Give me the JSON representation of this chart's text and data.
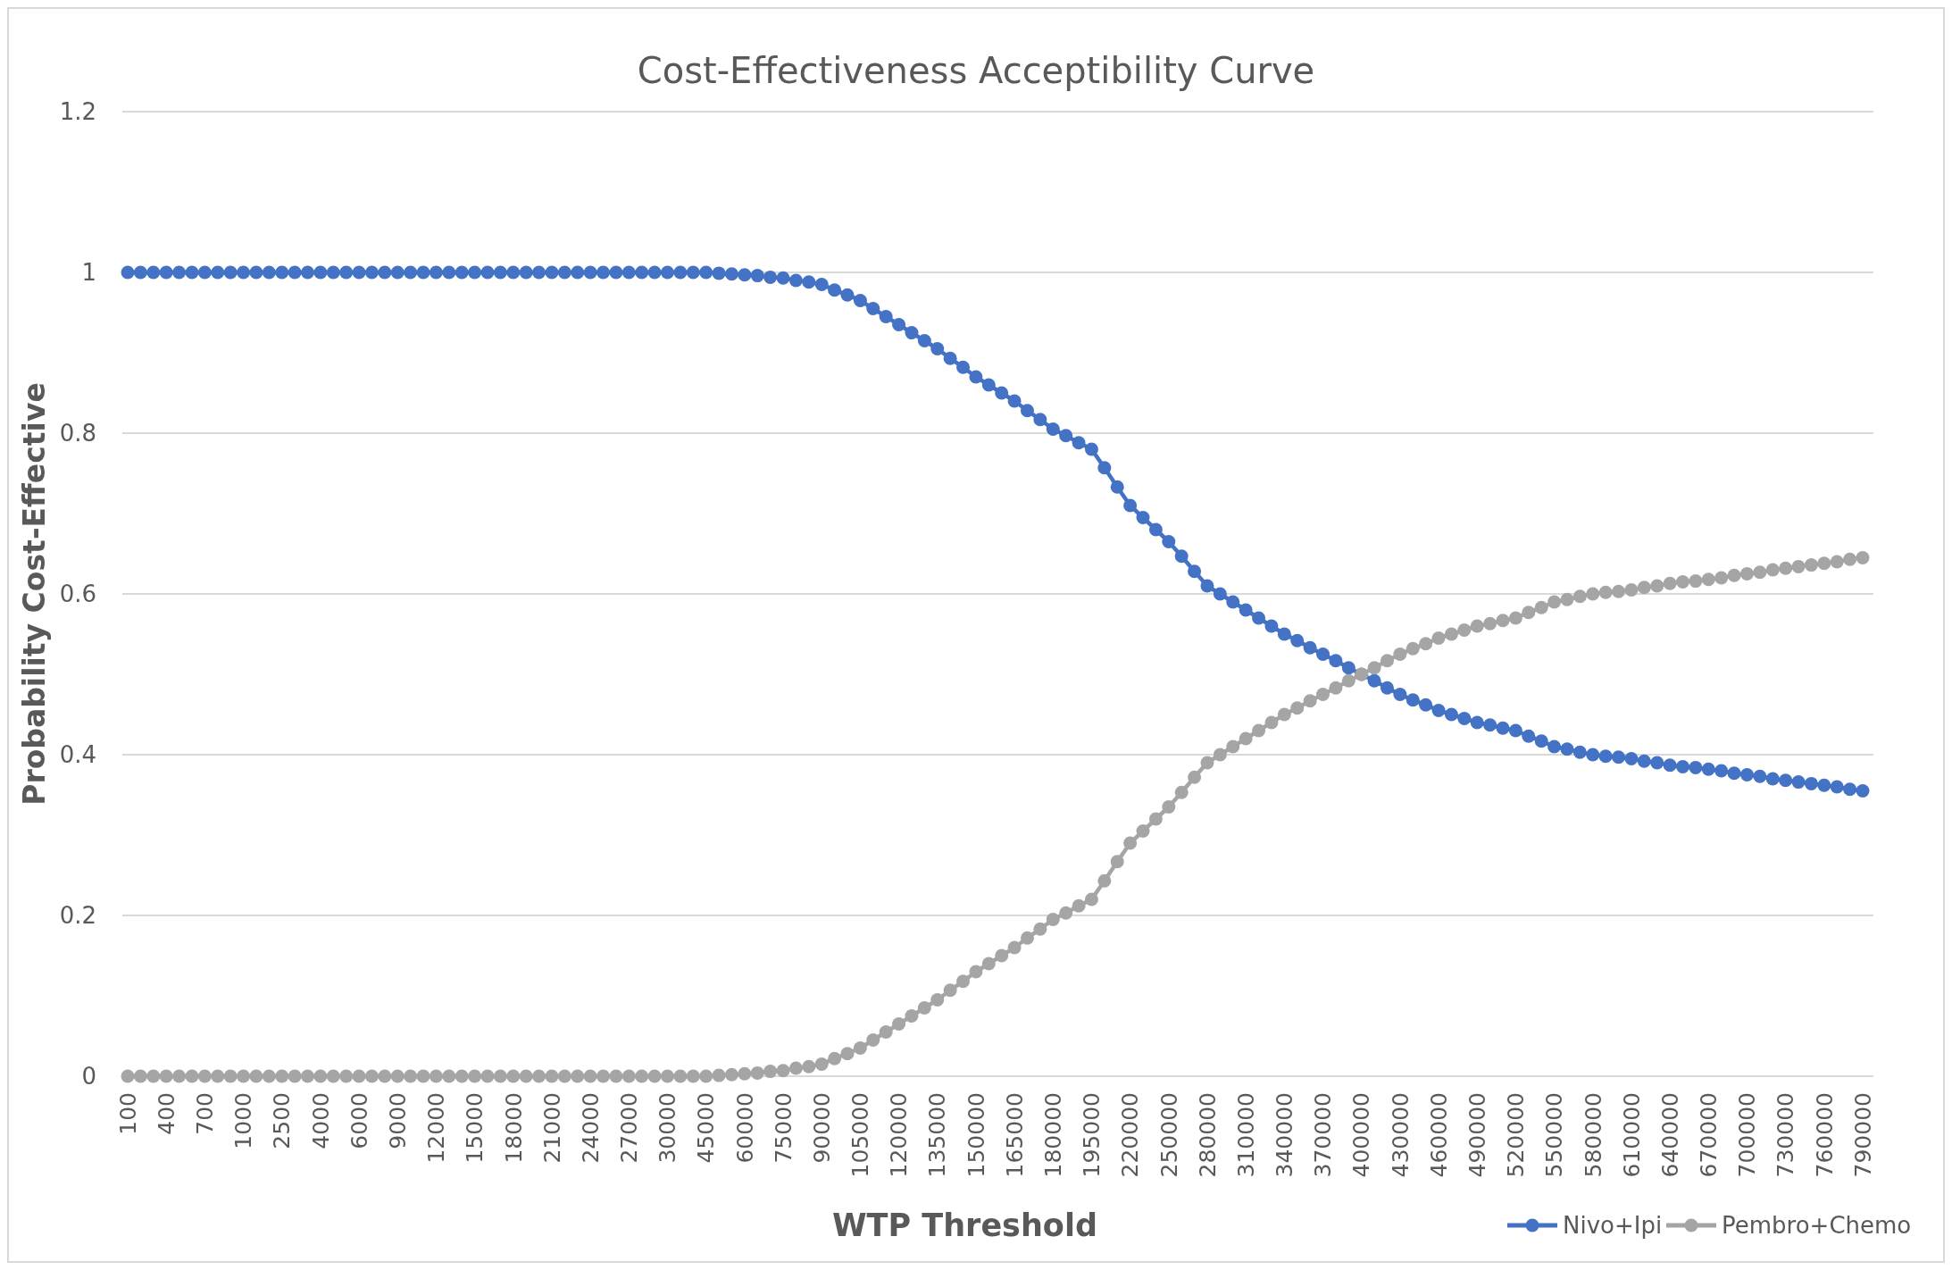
{
  "chart_data": {
    "type": "line",
    "title": "Cost-Effectiveness  Acceptibility Curve",
    "xlabel": "WTP Threshold",
    "ylabel": "Probability Cost-Effective",
    "categories": [
      "100",
      null,
      null,
      "400",
      null,
      null,
      "700",
      null,
      null,
      "1000",
      null,
      null,
      "2500",
      null,
      null,
      "4000",
      null,
      null,
      "6000",
      null,
      null,
      "9000",
      null,
      null,
      "12000",
      null,
      null,
      "15000",
      null,
      null,
      "18000",
      null,
      null,
      "21000",
      null,
      null,
      "24000",
      null,
      null,
      "27000",
      null,
      null,
      "30000",
      null,
      null,
      "45000",
      null,
      null,
      "60000",
      null,
      null,
      "75000",
      null,
      null,
      "90000",
      null,
      null,
      "105000",
      null,
      null,
      "120000",
      null,
      null,
      "135000",
      null,
      null,
      "150000",
      null,
      null,
      "165000",
      null,
      null,
      "180000",
      null,
      null,
      "195000",
      null,
      null,
      "220000",
      null,
      null,
      "250000",
      null,
      null,
      "280000",
      null,
      null,
      "310000",
      null,
      null,
      "340000",
      null,
      null,
      "370000",
      null,
      null,
      "400000",
      null,
      null,
      "430000",
      null,
      null,
      "460000",
      null,
      null,
      "490000",
      null,
      null,
      "520000",
      null,
      null,
      "550000",
      null,
      null,
      "580000",
      null,
      null,
      "610000",
      null,
      null,
      "640000",
      null,
      null,
      "670000",
      null,
      null,
      "700000",
      null,
      null,
      "730000",
      null,
      null,
      "760000",
      null,
      null,
      "790000"
    ],
    "series": [
      {
        "name": "Nivo+Ipi",
        "color": "#4472c4",
        "values": [
          1,
          1,
          1,
          1,
          1,
          1,
          1,
          1,
          1,
          1,
          1,
          1,
          1,
          1,
          1,
          1,
          1,
          1,
          1,
          1,
          1,
          1,
          1,
          1,
          1,
          1,
          1,
          1,
          1,
          1,
          1,
          1,
          1,
          1,
          1,
          1,
          1,
          1,
          1,
          1,
          1,
          1,
          1,
          1,
          1,
          1,
          0.999,
          0.998,
          0.997,
          0.996,
          0.994,
          0.993,
          0.99,
          0.988,
          0.985,
          0.978,
          0.972,
          0.965,
          0.955,
          0.945,
          0.935,
          0.925,
          0.915,
          0.905,
          0.893,
          0.882,
          0.87,
          0.86,
          0.85,
          0.84,
          0.828,
          0.817,
          0.805,
          0.797,
          0.788,
          0.78,
          0.757,
          0.733,
          0.71,
          0.695,
          0.68,
          0.665,
          0.647,
          0.628,
          0.61,
          0.6,
          0.59,
          0.58,
          0.57,
          0.56,
          0.55,
          0.542,
          0.533,
          0.525,
          0.517,
          0.508,
          0.5,
          0.492,
          0.483,
          0.475,
          0.468,
          0.462,
          0.455,
          0.45,
          0.445,
          0.44,
          0.437,
          0.433,
          0.43,
          0.423,
          0.417,
          0.41,
          0.407,
          0.403,
          0.4,
          0.398,
          0.397,
          0.395,
          0.392,
          0.39,
          0.387,
          0.385,
          0.384,
          0.382,
          0.38,
          0.377,
          0.375,
          0.373,
          0.37,
          0.368,
          0.366,
          0.364,
          0.362,
          0.36,
          0.357,
          0.355
        ]
      },
      {
        "name": "Pembro+Chemo",
        "color": "#a5a5a5",
        "values": [
          0,
          0,
          0,
          0,
          0,
          0,
          0,
          0,
          0,
          0,
          0,
          0,
          0,
          0,
          0,
          0,
          0,
          0,
          0,
          0,
          0,
          0,
          0,
          0,
          0,
          0,
          0,
          0,
          0,
          0,
          0,
          0,
          0,
          0,
          0,
          0,
          0,
          0,
          0,
          0,
          0,
          0,
          0,
          0,
          0,
          0,
          0.001,
          0.002,
          0.003,
          0.004,
          0.006,
          0.007,
          0.01,
          0.012,
          0.015,
          0.022,
          0.028,
          0.035,
          0.045,
          0.055,
          0.065,
          0.075,
          0.085,
          0.095,
          0.107,
          0.118,
          0.13,
          0.14,
          0.15,
          0.16,
          0.172,
          0.183,
          0.195,
          0.203,
          0.212,
          0.22,
          0.243,
          0.267,
          0.29,
          0.305,
          0.32,
          0.335,
          0.353,
          0.372,
          0.39,
          0.4,
          0.41,
          0.42,
          0.43,
          0.44,
          0.45,
          0.458,
          0.467,
          0.475,
          0.483,
          0.492,
          0.5,
          0.508,
          0.517,
          0.525,
          0.532,
          0.538,
          0.545,
          0.55,
          0.555,
          0.56,
          0.563,
          0.567,
          0.57,
          0.577,
          0.583,
          0.59,
          0.593,
          0.597,
          0.6,
          0.602,
          0.603,
          0.605,
          0.608,
          0.61,
          0.613,
          0.615,
          0.616,
          0.618,
          0.62,
          0.623,
          0.625,
          0.627,
          0.63,
          0.632,
          0.634,
          0.636,
          0.638,
          0.64,
          0.643,
          0.645
        ]
      }
    ],
    "ylim": [
      0,
      1.2
    ],
    "yticks": [
      0,
      0.2,
      0.4,
      0.6,
      0.8,
      1,
      1.2
    ],
    "grid": "y",
    "legend": "bottom right",
    "marker": "circle",
    "line_style": "solid"
  }
}
